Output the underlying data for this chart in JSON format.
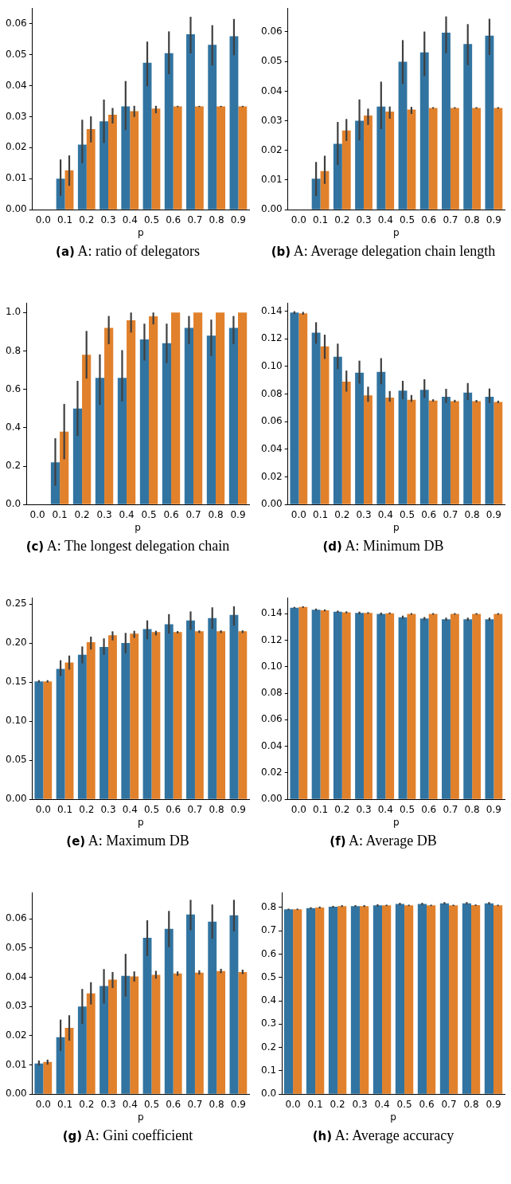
{
  "chart_data": [
    {
      "type": "bar",
      "title": "(a) A: ratio of delegators",
      "xlabel": "p",
      "categories": [
        "0.0",
        "0.1",
        "0.2",
        "0.3",
        "0.4",
        "0.5",
        "0.6",
        "0.7",
        "0.8",
        "0.9"
      ],
      "ylim": [
        0,
        0.065
      ],
      "yticks": [
        {
          "value": 0,
          "label": "0.00"
        },
        0.01,
        0.02,
        0.03,
        0.04,
        0.05,
        0.06
      ],
      "series": [
        {
          "color": "#3274a1",
          "values": [
            0,
            0.01,
            0.021,
            0.0285,
            0.0333,
            0.0474,
            0.0505,
            0.0566,
            0.0532,
            0.0559
          ],
          "errors": [
            null,
            [
              0.0045,
              0.0162
            ],
            [
              0.015,
              0.029
            ],
            [
              0.0215,
              0.0355
            ],
            [
              0.0257,
              0.0415
            ],
            [
              0.0398,
              0.0542
            ],
            [
              0.0437,
              0.0575
            ],
            [
              0.0504,
              0.0622
            ],
            [
              0.0465,
              0.0595
            ],
            [
              0.0498,
              0.0615
            ]
          ]
        },
        {
          "color": "#e1812c",
          "values": [
            0,
            0.0127,
            0.026,
            0.0306,
            0.0318,
            0.0326,
            0.0333,
            0.0333,
            0.0333,
            0.0333
          ],
          "errors": [
            null,
            [
              0.0077,
              0.0175
            ],
            [
              0.0217,
              0.0301
            ],
            [
              0.0278,
              0.0328
            ],
            [
              0.0299,
              0.0335
            ],
            [
              0.0311,
              0.0335
            ],
            [
              0.0331,
              0.0335
            ],
            [
              0.0331,
              0.0335
            ],
            [
              0.0331,
              0.0335
            ],
            [
              0.0331,
              0.0335
            ]
          ]
        }
      ]
    },
    {
      "type": "bar",
      "title": "(b) A: Average delegation chain length",
      "xlabel": "p",
      "categories": [
        "0.0",
        "0.1",
        "0.2",
        "0.3",
        "0.4",
        "0.5",
        "0.6",
        "0.7",
        "0.8",
        "0.9"
      ],
      "ylim": [
        0,
        0.068
      ],
      "yticks": [
        {
          "value": 0,
          "label": "0.00"
        },
        0.01,
        0.02,
        0.03,
        0.04,
        0.05,
        0.06
      ],
      "series": [
        {
          "color": "#3274a1",
          "values": [
            0,
            0.0105,
            0.0222,
            0.03,
            0.0348,
            0.0499,
            0.0531,
            0.0597,
            0.0559,
            0.0587
          ],
          "errors": [
            null,
            [
              0.0046,
              0.0161
            ],
            [
              0.0151,
              0.0296
            ],
            [
              0.0234,
              0.0372
            ],
            [
              0.0272,
              0.0432
            ],
            [
              0.0424,
              0.0572
            ],
            [
              0.0451,
              0.0601
            ],
            [
              0.0528,
              0.0652
            ],
            [
              0.0488,
              0.0626
            ],
            [
              0.0522,
              0.0644
            ]
          ]
        },
        {
          "color": "#e1812c",
          "values": [
            0,
            0.013,
            0.0267,
            0.0318,
            0.0331,
            0.0338,
            0.0343,
            0.0343,
            0.0343,
            0.0343
          ],
          "errors": [
            null,
            [
              0.0087,
              0.0182
            ],
            [
              0.0232,
              0.0306
            ],
            [
              0.0286,
              0.0341
            ],
            [
              0.0307,
              0.0348
            ],
            [
              0.0323,
              0.0347
            ],
            [
              0.0341,
              0.0346
            ],
            [
              0.0341,
              0.0346
            ],
            [
              0.0341,
              0.0346
            ],
            [
              0.0341,
              0.0346
            ]
          ]
        }
      ]
    },
    {
      "type": "bar",
      "title": "(c) A: The longest delegation chain",
      "xlabel": "p",
      "categories": [
        "0.0",
        "0.1",
        "0.2",
        "0.3",
        "0.4",
        "0.5",
        "0.6",
        "0.7",
        "0.8",
        "0.9"
      ],
      "ylim": [
        0,
        1.05
      ],
      "yticks": [
        {
          "value": 0,
          "label": "0.0"
        },
        0.2,
        0.4,
        0.6,
        0.8,
        {
          "value": 1,
          "label": "1.0"
        }
      ],
      "series": [
        {
          "color": "#3274a1",
          "values": [
            0,
            0.22,
            0.5,
            0.66,
            0.66,
            0.86,
            0.84,
            0.92,
            0.88,
            0.92
          ],
          "errors": [
            null,
            [
              0.098,
              0.345
            ],
            [
              0.357,
              0.644
            ],
            [
              0.518,
              0.782
            ],
            [
              0.537,
              0.804
            ],
            [
              0.75,
              0.942
            ],
            [
              0.737,
              0.942
            ],
            [
              0.835,
              0.982
            ],
            [
              0.774,
              0.963
            ],
            [
              0.835,
              0.982
            ]
          ]
        },
        {
          "color": "#e1812c",
          "values": [
            0,
            0.38,
            0.78,
            0.92,
            0.96,
            0.98,
            1,
            1,
            1,
            1
          ],
          "errors": [
            null,
            [
              0.236,
              0.524
            ],
            [
              0.656,
              0.904
            ],
            [
              0.835,
              0.982
            ],
            [
              0.896,
              1
            ],
            [
              0.938,
              1
            ],
            null,
            null,
            null,
            null
          ]
        }
      ]
    },
    {
      "type": "bar",
      "title": "(d) A: Minimum DB",
      "xlabel": "p",
      "categories": [
        "0.0",
        "0.1",
        "0.2",
        "0.3",
        "0.4",
        "0.5",
        "0.6",
        "0.7",
        "0.8",
        "0.9"
      ],
      "ylim": [
        0,
        0.146
      ],
      "yticks": [
        {
          "value": 0,
          "label": "0.00"
        },
        0.02,
        0.04,
        0.06,
        0.08,
        {
          "value": 0.1,
          "label": "0.10"
        },
        0.12,
        0.14
      ],
      "series": [
        {
          "color": "#3274a1",
          "values": [
            0.139,
            0.1245,
            0.107,
            0.0955,
            0.096,
            0.0825,
            0.083,
            0.078,
            0.081,
            0.078
          ],
          "errors": [
            [
              0.138,
              0.14
            ],
            [
              0.1165,
              0.132
            ],
            [
              0.098,
              0.1165
            ],
            [
              0.0876,
              0.1042
            ],
            [
              0.0871,
              0.106
            ],
            [
              0.0764,
              0.0896
            ],
            [
              0.0773,
              0.0907
            ],
            [
              0.0735,
              0.0838
            ],
            [
              0.0757,
              0.088
            ],
            [
              0.0735,
              0.084
            ]
          ]
        },
        {
          "color": "#e1812c",
          "values": [
            0.1385,
            0.1145,
            0.089,
            0.079,
            0.0775,
            0.0758,
            0.0753,
            0.0748,
            0.0748,
            0.0743
          ],
          "errors": [
            [
              0.1375,
              0.1395
            ],
            [
              0.1055,
              0.123
            ],
            [
              0.0818,
              0.097
            ],
            [
              0.0744,
              0.0853
            ],
            [
              0.0744,
              0.0822
            ],
            [
              0.0744,
              0.0793
            ],
            [
              0.0745,
              0.0762
            ],
            [
              0.074,
              0.0758
            ],
            [
              0.074,
              0.0757
            ],
            [
              0.0735,
              0.0752
            ]
          ]
        }
      ]
    },
    {
      "type": "bar",
      "title": "(e) A: Maximum DB",
      "xlabel": "p",
      "categories": [
        "0.0",
        "0.1",
        "0.2",
        "0.3",
        "0.4",
        "0.5",
        "0.6",
        "0.7",
        "0.8",
        "0.9"
      ],
      "ylim": [
        0,
        0.258
      ],
      "yticks": [
        {
          "value": 0,
          "label": "0.00"
        },
        0.05,
        {
          "value": 0.1,
          "label": "0.10"
        },
        0.15,
        {
          "value": 0.2,
          "label": "0.20"
        },
        0.25
      ],
      "series": [
        {
          "color": "#3274a1",
          "values": [
            0.151,
            0.167,
            0.185,
            0.195,
            0.2,
            0.218,
            0.224,
            0.229,
            0.232,
            0.236
          ],
          "errors": [
            [
              0.1495,
              0.1525
            ],
            [
              0.158,
              0.178
            ],
            [
              0.174,
              0.1956
            ],
            [
              0.185,
              0.206
            ],
            [
              0.187,
              0.213
            ],
            [
              0.205,
              0.229
            ],
            [
              0.212,
              0.237
            ],
            [
              0.217,
              0.2405
            ],
            [
              0.218,
              0.2457
            ],
            [
              0.2224,
              0.247
            ]
          ]
        },
        {
          "color": "#e1812c",
          "values": [
            0.151,
            0.175,
            0.201,
            0.21,
            0.212,
            0.214,
            0.214,
            0.215,
            0.215,
            0.215
          ],
          "errors": [
            [
              0.1495,
              0.1525
            ],
            [
              0.166,
              0.184
            ],
            [
              0.1917,
              0.2082
            ],
            [
              0.2035,
              0.215
            ],
            [
              0.2066,
              0.2157
            ],
            [
              0.2098,
              0.2157
            ],
            [
              0.2123,
              0.2153
            ],
            [
              0.2128,
              0.2162
            ],
            [
              0.2128,
              0.2162
            ],
            [
              0.2128,
              0.2162
            ]
          ]
        }
      ]
    },
    {
      "type": "bar",
      "title": "(f) A: Average DB",
      "xlabel": "p",
      "categories": [
        "0.0",
        "0.1",
        "0.2",
        "0.3",
        "0.4",
        "0.5",
        "0.6",
        "0.7",
        "0.8",
        "0.9"
      ],
      "ylim": [
        0,
        0.152
      ],
      "yticks": [
        {
          "value": 0,
          "label": "0.00"
        },
        0.02,
        0.04,
        0.06,
        0.08,
        {
          "value": 0.1,
          "label": "0.10"
        },
        0.12,
        0.14
      ],
      "series": [
        {
          "color": "#3274a1",
          "values": [
            0.1445,
            0.143,
            0.1415,
            0.1405,
            0.1398,
            0.1373,
            0.1363,
            0.1358,
            0.1358,
            0.1358
          ],
          "errors": [
            0.0006,
            0.0008,
            0.0008,
            0.001,
            0.001,
            0.0012,
            0.0012,
            0.0012,
            0.0012,
            0.0012
          ]
        },
        {
          "color": "#e1812c",
          "values": [
            0.145,
            0.1425,
            0.141,
            0.1405,
            0.1403,
            0.1398,
            0.1398,
            0.1398,
            0.1398,
            0.1398
          ],
          "errors": [
            0.0006,
            0.0007,
            0.0007,
            0.0006,
            0.0006,
            0.0006,
            0.0006,
            0.0006,
            0.0006,
            0.0006
          ]
        }
      ]
    },
    {
      "type": "bar",
      "title": "(g) A: Gini coefficient",
      "xlabel": "p",
      "categories": [
        "0.0",
        "0.1",
        "0.2",
        "0.3",
        "0.4",
        "0.5",
        "0.6",
        "0.7",
        "0.8",
        "0.9"
      ],
      "ylim": [
        0,
        0.069
      ],
      "yticks": [
        {
          "value": 0,
          "label": "0.00"
        },
        0.01,
        0.02,
        0.03,
        0.04,
        0.05,
        0.06
      ],
      "series": [
        {
          "color": "#3274a1",
          "values": [
            0.0105,
            0.0195,
            0.03,
            0.037,
            0.0405,
            0.0535,
            0.0566,
            0.0615,
            0.059,
            0.0612
          ],
          "errors": [
            [
              0.0098,
              0.0115
            ],
            [
              0.0148,
              0.0255
            ],
            [
              0.024,
              0.036
            ],
            [
              0.031,
              0.0428
            ],
            [
              0.0334,
              0.048
            ],
            [
              0.0473,
              0.0595
            ],
            [
              0.0503,
              0.0627
            ],
            [
              0.0561,
              0.0665
            ],
            [
              0.0532,
              0.0649
            ],
            [
              0.0557,
              0.0665
            ]
          ]
        },
        {
          "color": "#e1812c",
          "values": [
            0.011,
            0.0227,
            0.0345,
            0.0392,
            0.0403,
            0.0408,
            0.0413,
            0.0416,
            0.0421,
            0.0418
          ],
          "errors": [
            [
              0.0101,
              0.0118
            ],
            [
              0.0183,
              0.027
            ],
            [
              0.0307,
              0.0383
            ],
            [
              0.0363,
              0.0418
            ],
            [
              0.0385,
              0.042
            ],
            [
              0.0395,
              0.0422
            ],
            [
              0.0405,
              0.042
            ],
            [
              0.0409,
              0.0424
            ],
            [
              0.0414,
              0.0429
            ],
            [
              0.0411,
              0.0426
            ]
          ]
        }
      ]
    },
    {
      "type": "bar",
      "title": "(h) A: Average accuracy",
      "xlabel": "p",
      "categories": [
        "0.0",
        "0.1",
        "0.2",
        "0.3",
        "0.4",
        "0.5",
        "0.6",
        "0.7",
        "0.8",
        "0.9"
      ],
      "ylim": [
        0,
        0.864
      ],
      "yticks": [
        {
          "value": 0,
          "label": "0.0"
        },
        0.1,
        0.2,
        0.3,
        0.4,
        0.5,
        0.6,
        0.7,
        0.8
      ],
      "series": [
        {
          "color": "#3274a1",
          "values": [
            0.792,
            0.797,
            0.803,
            0.806,
            0.809,
            0.815,
            0.815,
            0.818,
            0.818,
            0.818
          ],
          "errors": [
            0.003,
            0.004,
            0.004,
            0.004,
            0.005,
            0.005,
            0.005,
            0.005,
            0.005,
            0.005
          ]
        },
        {
          "color": "#e1812c",
          "values": [
            0.792,
            0.8,
            0.806,
            0.806,
            0.809,
            0.809,
            0.809,
            0.809,
            0.81,
            0.809
          ],
          "errors": [
            0.003,
            0.004,
            0.004,
            0.004,
            0.003,
            0.003,
            0.003,
            0.003,
            0.003,
            0.003
          ]
        }
      ]
    }
  ]
}
